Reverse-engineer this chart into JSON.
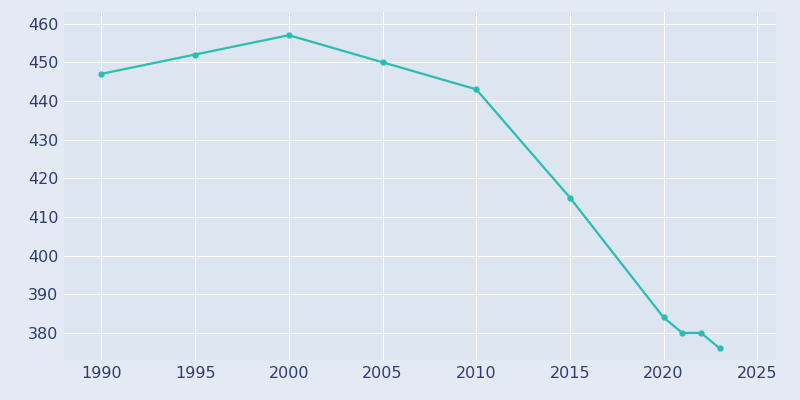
{
  "years": [
    1990,
    1995,
    2000,
    2005,
    2010,
    2015,
    2020,
    2021,
    2022,
    2023
  ],
  "population": [
    447,
    452,
    457,
    450,
    443,
    415,
    384,
    380,
    380,
    376
  ],
  "line_color": "#29BEB0",
  "marker_color": "#29BEB0",
  "background_color": "#E3EAF4",
  "plot_bg_color": "#DCE5F0",
  "grid_color": "#FFFFFF",
  "tick_color": "#2E3D6B",
  "xlim": [
    1988,
    2026
  ],
  "ylim": [
    373,
    463
  ],
  "yticks": [
    380,
    390,
    400,
    410,
    420,
    430,
    440,
    450,
    460
  ],
  "xticks": [
    1990,
    1995,
    2000,
    2005,
    2010,
    2015,
    2020,
    2025
  ],
  "linewidth": 1.6,
  "markersize": 3.5,
  "tick_fontsize": 11.5
}
